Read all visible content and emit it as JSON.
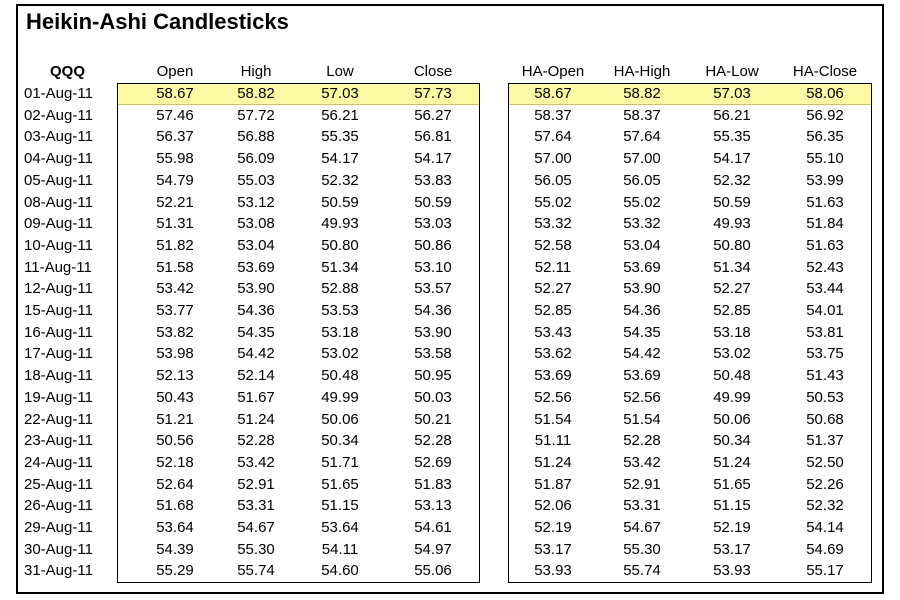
{
  "title": "Heikin-Ashi Candlesticks",
  "symbol": "QQQ",
  "colors": {
    "highlight": "#fdfaa6"
  },
  "headers": [
    "Open",
    "High",
    "Low",
    "Close",
    "HA-Open",
    "HA-High",
    "HA-Low",
    "HA-Close"
  ],
  "rows": [
    {
      "date": "01-Aug-11",
      "values": [
        "58.67",
        "58.82",
        "57.03",
        "57.73",
        "58.67",
        "58.82",
        "57.03",
        "58.06"
      ]
    },
    {
      "date": "02-Aug-11",
      "values": [
        "57.46",
        "57.72",
        "56.21",
        "56.27",
        "58.37",
        "58.37",
        "56.21",
        "56.92"
      ]
    },
    {
      "date": "03-Aug-11",
      "values": [
        "56.37",
        "56.88",
        "55.35",
        "56.81",
        "57.64",
        "57.64",
        "55.35",
        "56.35"
      ]
    },
    {
      "date": "04-Aug-11",
      "values": [
        "55.98",
        "56.09",
        "54.17",
        "54.17",
        "57.00",
        "57.00",
        "54.17",
        "55.10"
      ]
    },
    {
      "date": "05-Aug-11",
      "values": [
        "54.79",
        "55.03",
        "52.32",
        "53.83",
        "56.05",
        "56.05",
        "52.32",
        "53.99"
      ]
    },
    {
      "date": "08-Aug-11",
      "values": [
        "52.21",
        "53.12",
        "50.59",
        "50.59",
        "55.02",
        "55.02",
        "50.59",
        "51.63"
      ]
    },
    {
      "date": "09-Aug-11",
      "values": [
        "51.31",
        "53.08",
        "49.93",
        "53.03",
        "53.32",
        "53.32",
        "49.93",
        "51.84"
      ]
    },
    {
      "date": "10-Aug-11",
      "values": [
        "51.82",
        "53.04",
        "50.80",
        "50.86",
        "52.58",
        "53.04",
        "50.80",
        "51.63"
      ]
    },
    {
      "date": "11-Aug-11",
      "values": [
        "51.58",
        "53.69",
        "51.34",
        "53.10",
        "52.11",
        "53.69",
        "51.34",
        "52.43"
      ]
    },
    {
      "date": "12-Aug-11",
      "values": [
        "53.42",
        "53.90",
        "52.88",
        "53.57",
        "52.27",
        "53.90",
        "52.27",
        "53.44"
      ]
    },
    {
      "date": "15-Aug-11",
      "values": [
        "53.77",
        "54.36",
        "53.53",
        "54.36",
        "52.85",
        "54.36",
        "52.85",
        "54.01"
      ]
    },
    {
      "date": "16-Aug-11",
      "values": [
        "53.82",
        "54.35",
        "53.18",
        "53.90",
        "53.43",
        "54.35",
        "53.18",
        "53.81"
      ]
    },
    {
      "date": "17-Aug-11",
      "values": [
        "53.98",
        "54.42",
        "53.02",
        "53.58",
        "53.62",
        "54.42",
        "53.02",
        "53.75"
      ]
    },
    {
      "date": "18-Aug-11",
      "values": [
        "52.13",
        "52.14",
        "50.48",
        "50.95",
        "53.69",
        "53.69",
        "50.48",
        "51.43"
      ]
    },
    {
      "date": "19-Aug-11",
      "values": [
        "50.43",
        "51.67",
        "49.99",
        "50.03",
        "52.56",
        "52.56",
        "49.99",
        "50.53"
      ]
    },
    {
      "date": "22-Aug-11",
      "values": [
        "51.21",
        "51.24",
        "50.06",
        "50.21",
        "51.54",
        "51.54",
        "50.06",
        "50.68"
      ]
    },
    {
      "date": "23-Aug-11",
      "values": [
        "50.56",
        "52.28",
        "50.34",
        "52.28",
        "51.11",
        "52.28",
        "50.34",
        "51.37"
      ]
    },
    {
      "date": "24-Aug-11",
      "values": [
        "52.18",
        "53.42",
        "51.71",
        "52.69",
        "51.24",
        "53.42",
        "51.24",
        "52.50"
      ]
    },
    {
      "date": "25-Aug-11",
      "values": [
        "52.64",
        "52.91",
        "51.65",
        "51.83",
        "51.87",
        "52.91",
        "51.65",
        "52.26"
      ]
    },
    {
      "date": "26-Aug-11",
      "values": [
        "51.68",
        "53.31",
        "51.15",
        "53.13",
        "52.06",
        "53.31",
        "51.15",
        "52.32"
      ]
    },
    {
      "date": "29-Aug-11",
      "values": [
        "53.64",
        "54.67",
        "53.64",
        "54.61",
        "52.19",
        "54.67",
        "52.19",
        "54.14"
      ]
    },
    {
      "date": "30-Aug-11",
      "values": [
        "54.39",
        "55.30",
        "54.11",
        "54.97",
        "53.17",
        "55.30",
        "53.17",
        "54.69"
      ]
    },
    {
      "date": "31-Aug-11",
      "values": [
        "55.29",
        "55.74",
        "54.60",
        "55.06",
        "53.93",
        "55.74",
        "53.93",
        "55.17"
      ]
    }
  ]
}
